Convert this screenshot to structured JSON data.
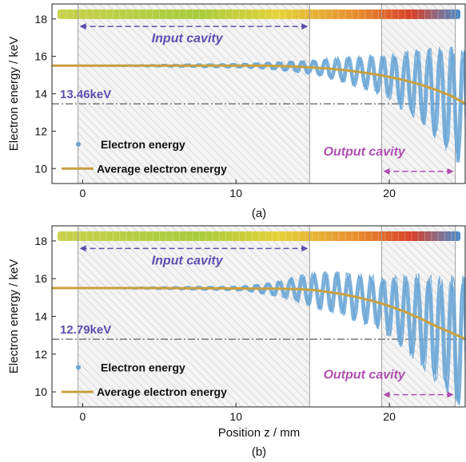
{
  "figure": {
    "xlabel": "Position z / mm",
    "ylabel": "Electron energy / keV"
  },
  "colors": {
    "electron": "#6aa6d6",
    "average": "#c8a040",
    "input_cavity": "#5b4fb0",
    "output_cavity": "#b04fb0",
    "reference_line": "#777777",
    "reference_label": "#5b4fb0"
  },
  "chart_data": [
    {
      "type": "line",
      "panel_label": "(a)",
      "xlabel": "",
      "ylabel": "Electron energy / keV",
      "xlim": [
        -2,
        25
      ],
      "ylim": [
        9.2,
        18.8
      ],
      "xticks": [
        0,
        10,
        20
      ],
      "yticks": [
        10,
        12,
        14,
        16,
        18
      ],
      "reference_energy": 13.46,
      "reference_label": "13.46keV",
      "input_cavity": {
        "label": "Input cavity",
        "x": [
          -0.3,
          14.8
        ]
      },
      "output_cavity": {
        "label": "Output cavity",
        "x": [
          19.5,
          24.3
        ]
      },
      "series": [
        {
          "name": "Electron energy",
          "style": "scatter"
        },
        {
          "name": "Average electron energy",
          "style": "line",
          "x": [
            -2,
            0,
            5,
            10,
            12,
            14,
            15,
            16,
            17,
            18,
            19,
            20,
            21,
            22,
            23,
            24,
            25
          ],
          "y": [
            15.5,
            15.5,
            15.5,
            15.5,
            15.5,
            15.45,
            15.4,
            15.35,
            15.27,
            15.17,
            15.05,
            14.9,
            14.72,
            14.5,
            14.22,
            13.9,
            13.46
          ]
        }
      ],
      "legend": "lower-left",
      "grid": false
    },
    {
      "type": "line",
      "panel_label": "(b)",
      "xlabel": "Position z / mm",
      "ylabel": "Electron energy / keV",
      "xlim": [
        -2,
        25
      ],
      "ylim": [
        9.2,
        18.8
      ],
      "xticks": [
        0,
        10,
        20
      ],
      "yticks": [
        10,
        12,
        14,
        16,
        18
      ],
      "reference_energy": 12.79,
      "reference_label": "12.79keV",
      "input_cavity": {
        "label": "Input cavity",
        "x": [
          -0.3,
          14.8
        ]
      },
      "output_cavity": {
        "label": "Output cavity",
        "x": [
          19.5,
          24.3
        ]
      },
      "series": [
        {
          "name": "Electron energy",
          "style": "scatter"
        },
        {
          "name": "Average electron energy",
          "style": "line",
          "x": [
            -2,
            0,
            5,
            10,
            12,
            14,
            15,
            16,
            17,
            18,
            19,
            20,
            21,
            22,
            23,
            24,
            25
          ],
          "y": [
            15.5,
            15.5,
            15.5,
            15.48,
            15.47,
            15.45,
            15.4,
            15.3,
            15.17,
            15.0,
            14.8,
            14.55,
            14.25,
            13.9,
            13.5,
            13.15,
            12.79
          ]
        }
      ],
      "legend": "lower-left",
      "grid": false
    }
  ]
}
